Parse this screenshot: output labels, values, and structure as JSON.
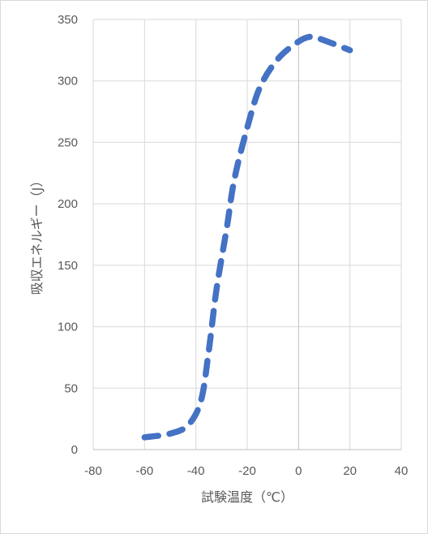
{
  "chart_data": {
    "type": "scatter",
    "title": "",
    "xlabel": "試験温度（℃）",
    "ylabel": "吸収エネルギー（J）",
    "xlim": [
      -80,
      40
    ],
    "ylim": [
      0,
      350
    ],
    "x_ticks": [
      "-80",
      "-60",
      "-40",
      "-20",
      "0",
      "20",
      "40"
    ],
    "y_ticks": [
      "0",
      "50",
      "100",
      "150",
      "200",
      "250",
      "300",
      "350"
    ],
    "grid": true,
    "legend": "none",
    "series": [
      {
        "style": "smoothed dashed line",
        "color": "#4472c4",
        "points": [
          {
            "x": -60,
            "y": 10
          },
          {
            "x": -50,
            "y": 13
          },
          {
            "x": -43,
            "y": 20
          },
          {
            "x": -38,
            "y": 40
          },
          {
            "x": -35,
            "y": 80
          },
          {
            "x": -32,
            "y": 130
          },
          {
            "x": -28,
            "y": 180
          },
          {
            "x": -25,
            "y": 220
          },
          {
            "x": -20,
            "y": 262
          },
          {
            "x": -15,
            "y": 295
          },
          {
            "x": -8,
            "y": 318
          },
          {
            "x": 0,
            "y": 332
          },
          {
            "x": 5,
            "y": 336
          },
          {
            "x": 10,
            "y": 333
          },
          {
            "x": 20,
            "y": 325
          }
        ]
      }
    ]
  }
}
